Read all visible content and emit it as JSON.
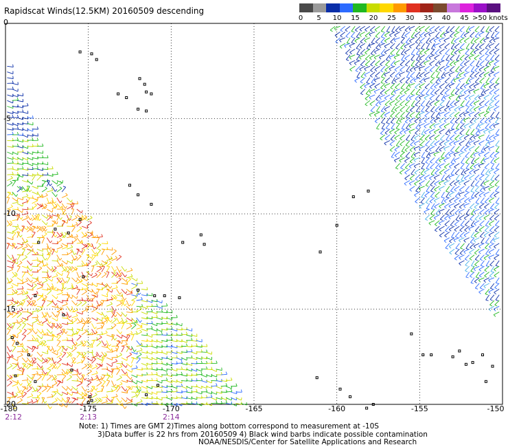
{
  "header": {
    "title": "Rapidscat Winds(12.5KM) 20160509 descending"
  },
  "legend": {
    "colors": [
      "#4a4a4a",
      "#9a9a9a",
      "#0a2ea8",
      "#2d6bff",
      "#20b820",
      "#c8dc00",
      "#ffd800",
      "#ff9a00",
      "#e03020",
      "#a02418",
      "#7b4a2e",
      "#c878dc",
      "#dd22dd",
      "#9a10c8",
      "#5a1080"
    ],
    "labels": [
      "0",
      "5",
      "10",
      "15",
      "20",
      "25",
      "30",
      "35",
      "40",
      "45"
    ],
    "last_label": ">50 knots"
  },
  "axes": {
    "x_ticks": [
      "-180",
      "-175",
      "-170",
      "-165",
      "-160",
      "-155",
      "-150"
    ],
    "y_ticks": [
      "0",
      "-5",
      "-10",
      "-15",
      "-20"
    ],
    "times": [
      "2:12",
      "2:13",
      "2:14"
    ]
  },
  "notes": {
    "line1": "Note: 1) Times are GMT 2)Times along bottom correspond to measurement at -10S",
    "line2": "3)Data buffer is 22 hrs from 20160509 4) Black wind barbs indicate possible contamination",
    "line3": "NOAA/NESDIS/Center for Satellite Applications and Research"
  },
  "map_data": {
    "lon_range": [
      -180,
      -150
    ],
    "lat_range": [
      -20,
      0
    ],
    "swaths": [
      {
        "name": "west",
        "polygon": [
          [
            -180.0,
            -2.0
          ],
          [
            -180.0,
            -20.0
          ],
          [
            -165.5,
            -20.0
          ],
          [
            -168.5,
            -16.5
          ],
          [
            -171.5,
            -14.0
          ],
          [
            -174.5,
            -11.0
          ],
          [
            -177.5,
            -7.5
          ]
        ]
      },
      {
        "name": "east",
        "polygon": [
          [
            -160.2,
            0.0
          ],
          [
            -150.0,
            0.0
          ],
          [
            -150.0,
            -15.5
          ],
          [
            -154.5,
            -10.0
          ],
          [
            -156.5,
            -7.0
          ]
        ]
      }
    ],
    "islands": [
      [
        -174.8,
        -1.6
      ],
      [
        -174.5,
        -1.9
      ],
      [
        -173.2,
        -3.7
      ],
      [
        -172.7,
        -3.9
      ],
      [
        -171.9,
        -2.9
      ],
      [
        -171.6,
        -3.2
      ],
      [
        -171.5,
        -3.6
      ],
      [
        -171.2,
        -3.7
      ],
      [
        -172.0,
        -4.5
      ],
      [
        -171.5,
        -4.6
      ],
      [
        -175.5,
        -1.5
      ],
      [
        -172.5,
        -8.5
      ],
      [
        -172.0,
        -9.0
      ],
      [
        -171.2,
        -9.5
      ],
      [
        -176.2,
        -11.0
      ],
      [
        -175.5,
        -10.3
      ],
      [
        -177.0,
        -10.8
      ],
      [
        -178.0,
        -11.5
      ],
      [
        -175.3,
        -13.3
      ],
      [
        -172.0,
        -14.0
      ],
      [
        -171.0,
        -14.3
      ],
      [
        -170.4,
        -14.3
      ],
      [
        -169.5,
        -14.4
      ],
      [
        -168.2,
        -11.1
      ],
      [
        -169.3,
        -11.5
      ],
      [
        -178.2,
        -14.3
      ],
      [
        -176.5,
        -15.3
      ],
      [
        -179.6,
        -16.5
      ],
      [
        -179.3,
        -16.8
      ],
      [
        -178.6,
        -17.4
      ],
      [
        -179.4,
        -18.5
      ],
      [
        -178.2,
        -18.8
      ],
      [
        -176.0,
        -18.2
      ],
      [
        -174.9,
        -19.6
      ],
      [
        -175.0,
        -19.9
      ],
      [
        -174.8,
        -19.8
      ],
      [
        -161.0,
        -12.0
      ],
      [
        -159.0,
        -9.1
      ],
      [
        -158.1,
        -8.8
      ],
      [
        -160.0,
        -10.6
      ],
      [
        -161.2,
        -18.6
      ],
      [
        -159.8,
        -19.2
      ],
      [
        -159.2,
        -19.6
      ],
      [
        -158.2,
        -20.2
      ],
      [
        -157.8,
        -20.0
      ],
      [
        -155.5,
        -16.3
      ],
      [
        -154.8,
        -17.4
      ],
      [
        -154.3,
        -17.4
      ],
      [
        -153.0,
        -17.5
      ],
      [
        -152.6,
        -17.2
      ],
      [
        -152.2,
        -17.9
      ],
      [
        -151.8,
        -17.8
      ],
      [
        -151.2,
        -17.4
      ],
      [
        -150.6,
        -18.0
      ],
      [
        -151.0,
        -18.8
      ],
      [
        -168.0,
        -11.6
      ],
      [
        -171.5,
        -19.5
      ],
      [
        -170.8,
        -19.0
      ]
    ]
  }
}
